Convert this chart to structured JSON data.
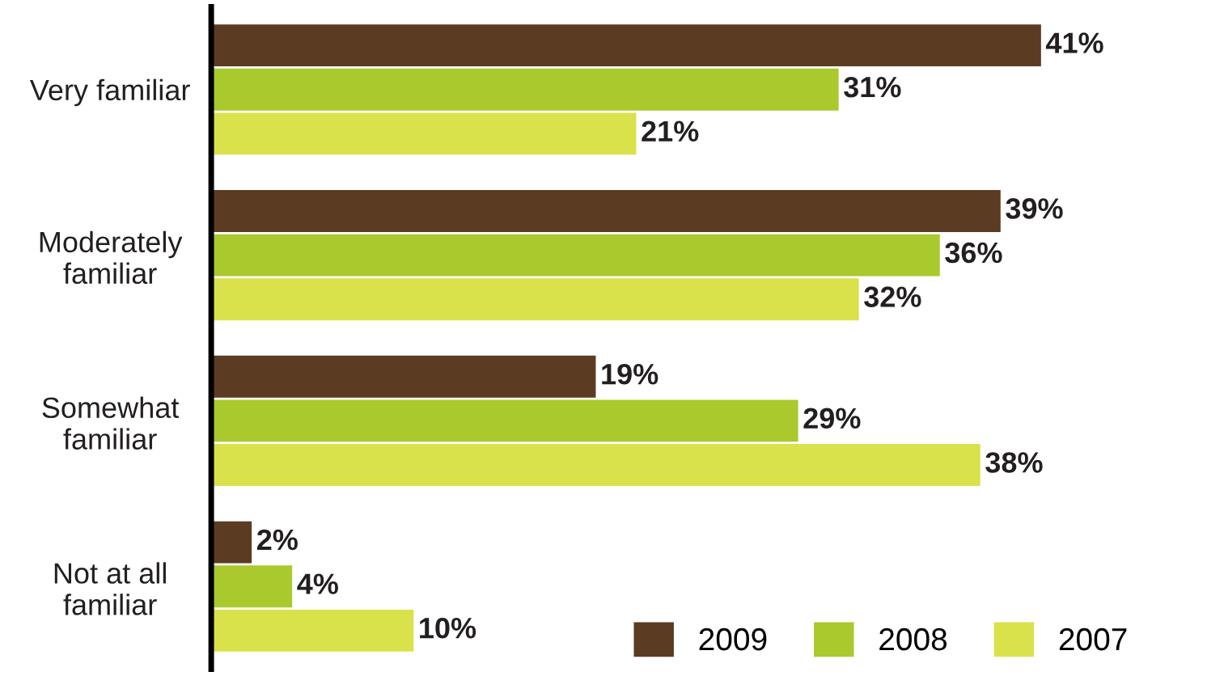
{
  "chart_data": {
    "type": "bar",
    "orientation": "horizontal",
    "categories": [
      "Very familiar",
      "Moderately\nfamiliar",
      "Somewhat\nfamiliar",
      "Not at all\nfamiliar"
    ],
    "series": [
      {
        "name": "2009",
        "color": "#5c3b23",
        "values": [
          41,
          39,
          19,
          2
        ],
        "value_labels": [
          "41%",
          "39%",
          "19%",
          "2%"
        ]
      },
      {
        "name": "2008",
        "color": "#a9c92d",
        "values": [
          31,
          36,
          29,
          4
        ],
        "value_labels": [
          "31%",
          "36%",
          "29%",
          "4%"
        ]
      },
      {
        "name": "2007",
        "color": "#d9e24a",
        "values": [
          21,
          32,
          38,
          10
        ],
        "value_labels": [
          "21%",
          "32%",
          "38%",
          "10%"
        ]
      }
    ],
    "legend": "bottom right",
    "tick_labels": "y"
  }
}
